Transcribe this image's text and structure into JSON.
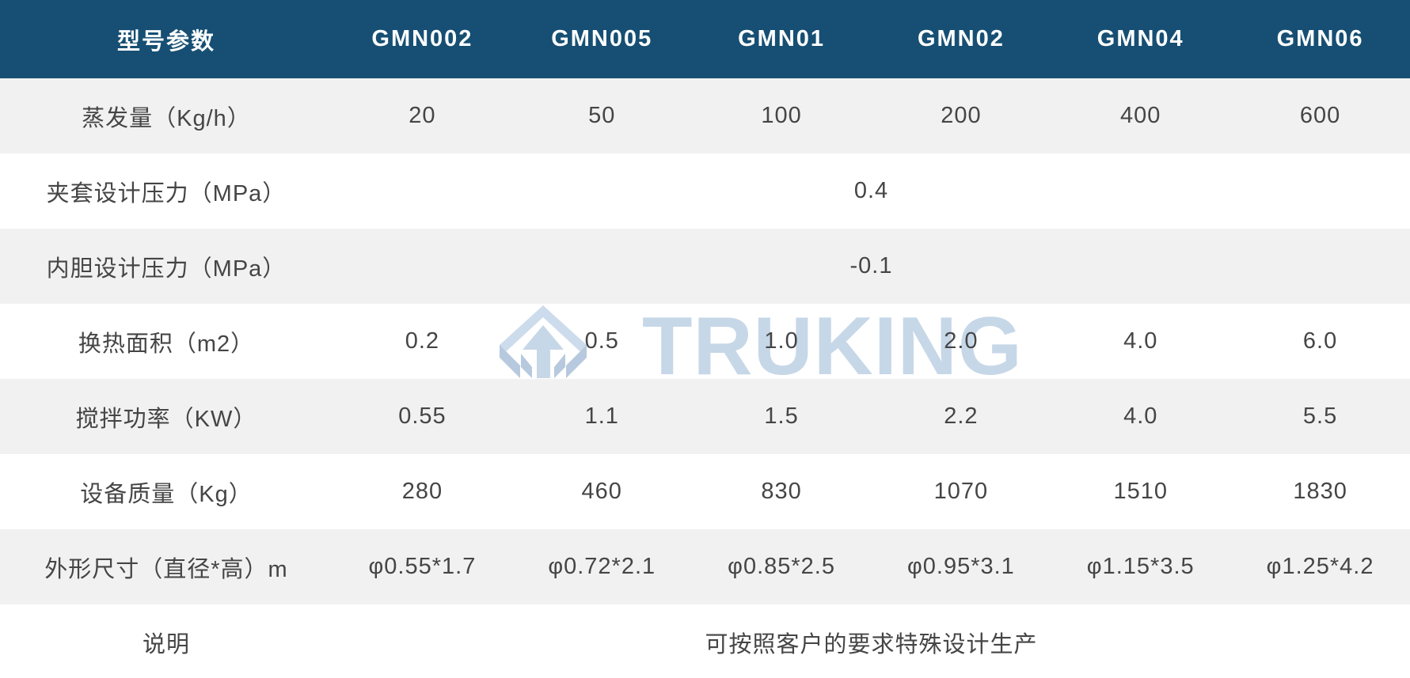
{
  "table": {
    "header_label": "型号参数",
    "models": [
      "GMN002",
      "GMN005",
      "GMN01",
      "GMN02",
      "GMN04",
      "GMN06"
    ],
    "rows": [
      {
        "label": "蒸发量（Kg/h）",
        "values": [
          "20",
          "50",
          "100",
          "200",
          "400",
          "600"
        ]
      },
      {
        "label": "夹套设计压力（MPa）",
        "merged_value": "0.4"
      },
      {
        "label": "内胆设计压力（MPa）",
        "merged_value": "-0.1"
      },
      {
        "label": "换热面积（m2）",
        "values": [
          "0.2",
          "0.5",
          "1.0",
          "2.0",
          "4.0",
          "6.0"
        ]
      },
      {
        "label": "搅拌功率（KW）",
        "values": [
          "0.55",
          "1.1",
          "1.5",
          "2.2",
          "4.0",
          "5.5"
        ]
      },
      {
        "label": "设备质量（Kg）",
        "values": [
          "280",
          "460",
          "830",
          "1070",
          "1510",
          "1830"
        ]
      },
      {
        "label": "外形尺寸（直径*高）m",
        "values": [
          "φ0.55*1.7",
          "φ0.72*2.1",
          "φ0.85*2.5",
          "φ0.95*3.1",
          "φ1.15*3.5",
          "φ1.25*4.2"
        ]
      },
      {
        "label": "说明",
        "merged_value": "可按照客户的要求特殊设计生产"
      }
    ]
  },
  "watermark": {
    "text": "TRUKING",
    "icon": "truking-logo-icon"
  },
  "colors": {
    "header_bg": "#164f73",
    "header_text": "#ffffff",
    "row_stripe": "#f1f1f1",
    "row_white": "#ffffff",
    "body_text": "#454545",
    "watermark_blue": "#c6d7e8",
    "watermark_blue_dark": "#b7c9de"
  }
}
